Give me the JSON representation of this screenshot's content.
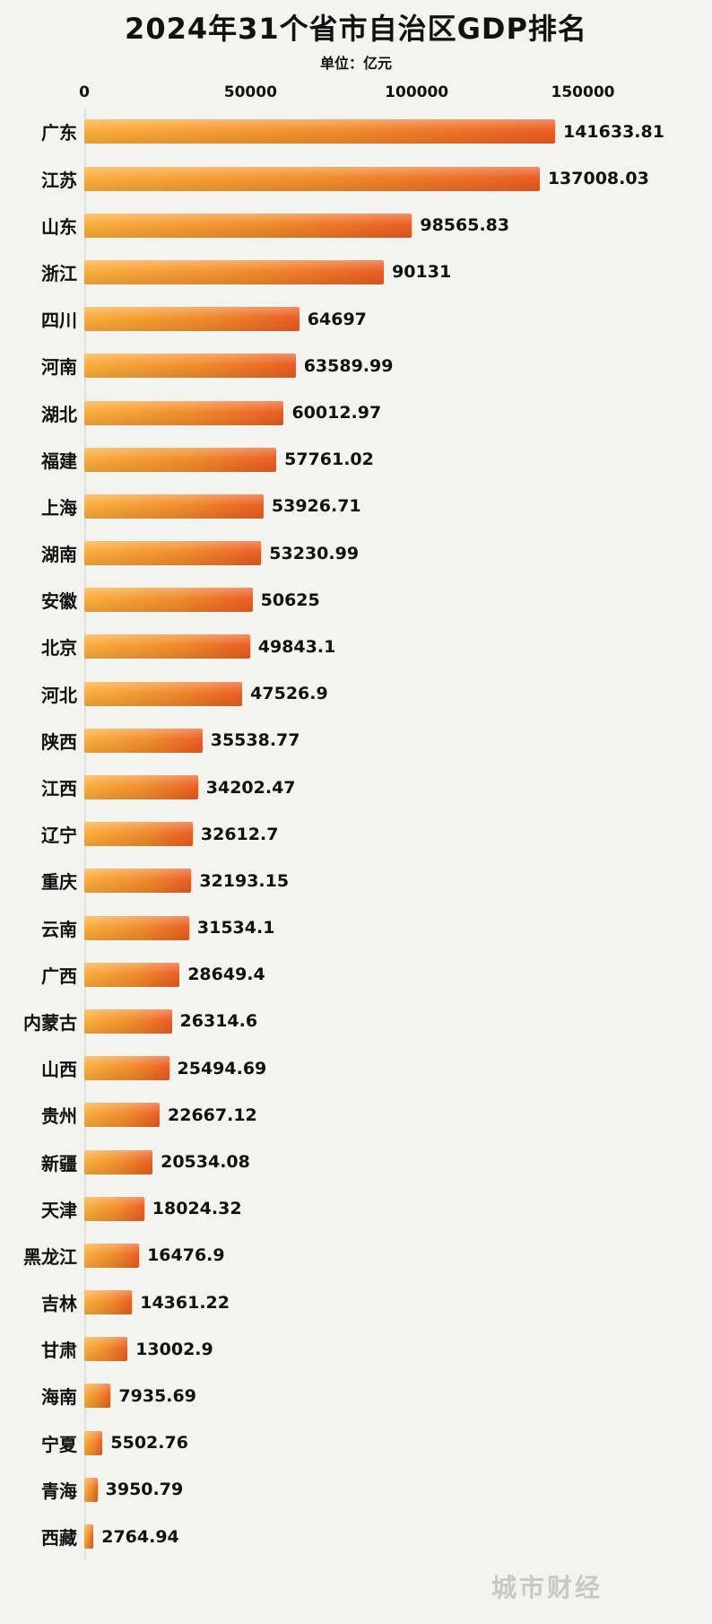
{
  "page": {
    "title": "2024年31个省市自治区GDP排名",
    "subtitle": "单位：亿元",
    "watermark": "城市财经"
  },
  "colors": {
    "background": "#f3f3ef",
    "bar_gradient_start": "#fbae3c",
    "bar_gradient_end": "#ec5d24",
    "axis_line": "#e0e0da",
    "text": "#111111",
    "watermark": "#c9c9c2"
  },
  "chart_data": {
    "type": "bar",
    "orientation": "horizontal",
    "title": "2024年31个省市自治区GDP排名",
    "unit_label": "单位：亿元",
    "xlabel": "",
    "ylabel": "",
    "xlim": [
      0,
      150000
    ],
    "xticks": [
      0,
      50000,
      100000,
      150000
    ],
    "xtick_labels": [
      "0",
      "50000",
      "100000",
      "150000"
    ],
    "grid": false,
    "legend": false,
    "categories": [
      "广东",
      "江苏",
      "山东",
      "浙江",
      "四川",
      "河南",
      "湖北",
      "福建",
      "上海",
      "湖南",
      "安徽",
      "北京",
      "河北",
      "陕西",
      "江西",
      "辽宁",
      "重庆",
      "云南",
      "广西",
      "内蒙古",
      "山西",
      "贵州",
      "新疆",
      "天津",
      "黑龙江",
      "吉林",
      "甘肃",
      "海南",
      "宁夏",
      "青海",
      "西藏"
    ],
    "values": [
      141633.81,
      137008.03,
      98565.83,
      90131,
      64697,
      63589.99,
      60012.97,
      57761.02,
      53926.71,
      53230.99,
      50625,
      49843.1,
      47526.9,
      35538.77,
      34202.47,
      32612.7,
      32193.15,
      31534.1,
      28649.4,
      26314.6,
      25494.69,
      22667.12,
      20534.08,
      18024.32,
      16476.9,
      14361.22,
      13002.9,
      7935.69,
      5502.76,
      3950.79,
      2764.94
    ],
    "value_labels": [
      "141633.81",
      "137008.03",
      "98565.83",
      "90131",
      "64697",
      "63589.99",
      "60012.97",
      "57761.02",
      "53926.71",
      "53230.99",
      "50625",
      "49843.1",
      "47526.9",
      "35538.77",
      "34202.47",
      "32612.7",
      "32193.15",
      "31534.1",
      "28649.4",
      "26314.6",
      "25494.69",
      "22667.12",
      "20534.08",
      "18024.32",
      "16476.9",
      "14361.22",
      "13002.9",
      "7935.69",
      "5502.76",
      "3950.79",
      "2764.94"
    ]
  }
}
